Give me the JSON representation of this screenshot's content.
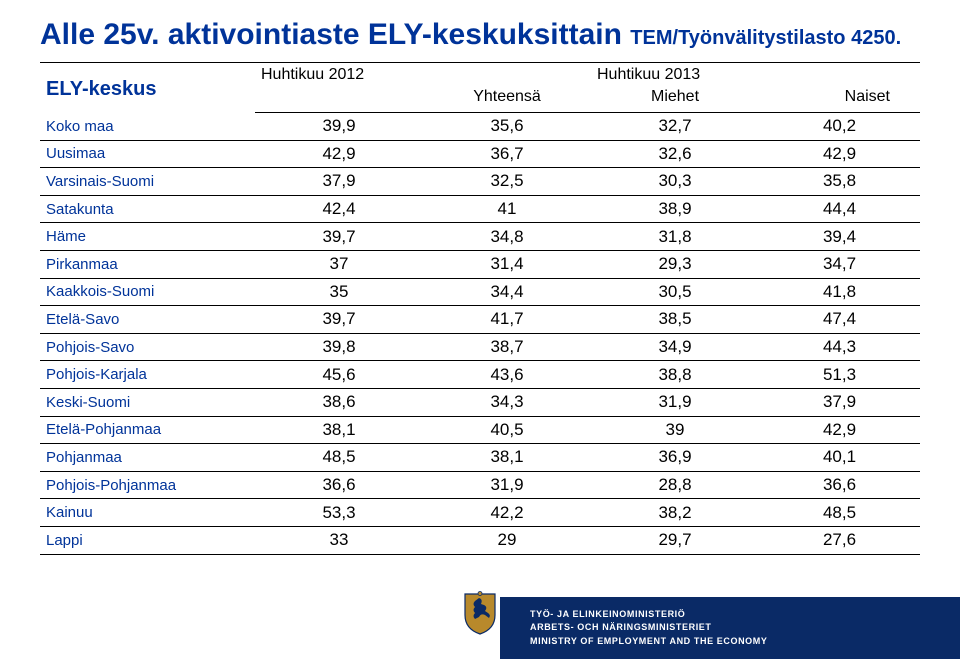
{
  "title_main": "Alle 25v. aktivointiaste ELY-keskuksittain",
  "title_sub": "TEM/Työnvälitystilasto 4250.",
  "header": {
    "ely": "ELY-keskus",
    "col_2012": "Huhtikuu 2012",
    "col_2013": "Huhtikuu 2013",
    "col_yht": "Yhteensä",
    "col_miehet": "Miehet",
    "col_naiset": "Naiset"
  },
  "rows": [
    {
      "label": "Koko maa",
      "v": [
        "39,9",
        "35,6",
        "32,7",
        "40,2"
      ]
    },
    {
      "label": "Uusimaa",
      "v": [
        "42,9",
        "36,7",
        "32,6",
        "42,9"
      ]
    },
    {
      "label": "Varsinais-Suomi",
      "v": [
        "37,9",
        "32,5",
        "30,3",
        "35,8"
      ]
    },
    {
      "label": "Satakunta",
      "v": [
        "42,4",
        "41",
        "38,9",
        "44,4"
      ]
    },
    {
      "label": "Häme",
      "v": [
        "39,7",
        "34,8",
        "31,8",
        "39,4"
      ]
    },
    {
      "label": "Pirkanmaa",
      "v": [
        "37",
        "31,4",
        "29,3",
        "34,7"
      ]
    },
    {
      "label": "Kaakkois-Suomi",
      "v": [
        "35",
        "34,4",
        "30,5",
        "41,8"
      ]
    },
    {
      "label": "Etelä-Savo",
      "v": [
        "39,7",
        "41,7",
        "38,5",
        "47,4"
      ]
    },
    {
      "label": "Pohjois-Savo",
      "v": [
        "39,8",
        "38,7",
        "34,9",
        "44,3"
      ]
    },
    {
      "label": "Pohjois-Karjala",
      "v": [
        "45,6",
        "43,6",
        "38,8",
        "51,3"
      ]
    },
    {
      "label": "Keski-Suomi",
      "v": [
        "38,6",
        "34,3",
        "31,9",
        "37,9"
      ]
    },
    {
      "label": "Etelä-Pohjanmaa",
      "v": [
        "38,1",
        "40,5",
        "39",
        "42,9"
      ]
    },
    {
      "label": "Pohjanmaa",
      "v": [
        "48,5",
        "38,1",
        "36,9",
        "40,1"
      ]
    },
    {
      "label": "Pohjois-Pohjanmaa",
      "v": [
        "36,6",
        "31,9",
        "28,8",
        "36,6"
      ]
    },
    {
      "label": "Kainuu",
      "v": [
        "53,3",
        "42,2",
        "38,2",
        "48,5"
      ]
    },
    {
      "label": "Lappi",
      "v": [
        "33",
        "29",
        "29,7",
        "27,6"
      ]
    }
  ],
  "footer": {
    "line1": "TYÖ- JA ELINKEINOMINISTERIÖ",
    "line2": "ARBETS- OCH NÄRINGSMINISTERIET",
    "line3": "MINISTRY OF EMPLOYMENT AND THE ECONOMY"
  },
  "colors": {
    "brand_blue": "#003399",
    "footer_bg": "#0a2a66",
    "text_black": "#000000",
    "crest_gold": "#b8892b",
    "crest_outline": "#0a2a66"
  }
}
